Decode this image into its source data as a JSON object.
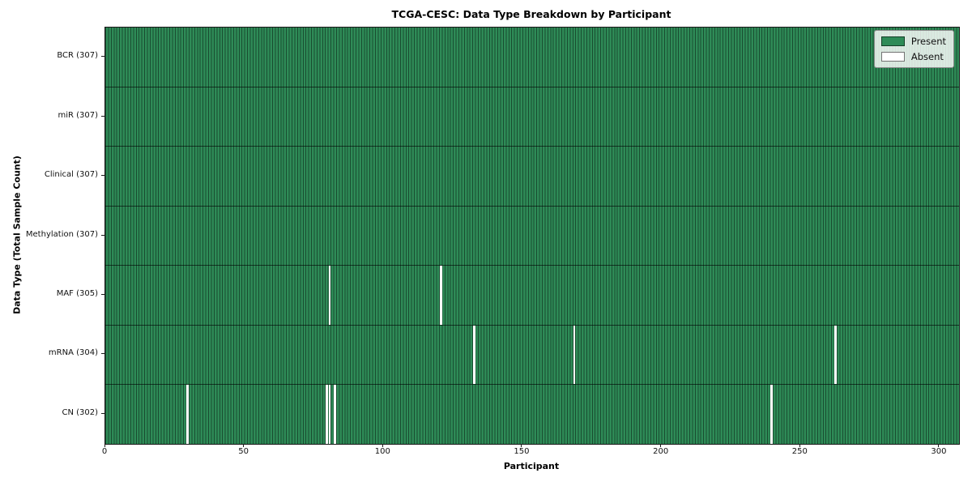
{
  "chart_data": {
    "type": "heatmap",
    "title": "TCGA-CESC: Data Type Breakdown by Participant",
    "xlabel": "Participant",
    "ylabel": "Data Type (Total Sample Count)",
    "n_participants": 307,
    "x_range": [
      0,
      307
    ],
    "x_ticks": [
      0,
      50,
      100,
      150,
      200,
      250,
      300
    ],
    "grid": false,
    "legend": {
      "position": "upper right",
      "items": [
        {
          "label": "Present",
          "color": "#2e8b57"
        },
        {
          "label": "Absent",
          "color": "#ffffff"
        }
      ]
    },
    "rows": [
      {
        "label": "BCR (307)",
        "data_type": "BCR",
        "total": 307,
        "absent_participants": []
      },
      {
        "label": "miR (307)",
        "data_type": "miR",
        "total": 307,
        "absent_participants": []
      },
      {
        "label": "Clinical (307)",
        "data_type": "Clinical",
        "total": 307,
        "absent_participants": []
      },
      {
        "label": "Methylation (307)",
        "data_type": "Methylation",
        "total": 307,
        "absent_participants": []
      },
      {
        "label": "MAF (305)",
        "data_type": "MAF",
        "total": 305,
        "absent_participants": [
          80,
          120
        ]
      },
      {
        "label": "mRNA (304)",
        "data_type": "mRNA",
        "total": 304,
        "absent_participants": [
          132,
          168,
          262
        ]
      },
      {
        "label": "CN (302)",
        "data_type": "CN",
        "total": 302,
        "absent_participants": [
          29,
          79,
          80,
          82,
          239
        ]
      }
    ],
    "colors": {
      "present": "#2e8b57",
      "absent": "#ffffff",
      "bar_edge": "rgba(0,0,0,0.45)",
      "background": "#ffffff"
    }
  }
}
